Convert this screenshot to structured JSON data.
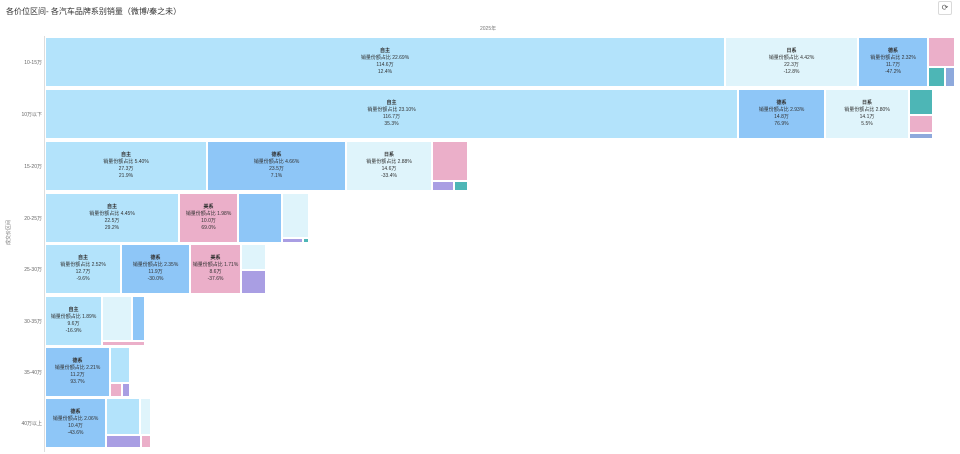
{
  "title": "各价位区间- 各汽车品牌系别销量（微博/秦之未）",
  "refresh_icon": "refresh-icon",
  "chart_data": {
    "type": "treemap",
    "column_label": "2025年",
    "y_axis_title": "成交价区间",
    "colors": {
      "自主": "#b3e3fb",
      "日系": "#dff4fb",
      "德系": "#8ec6f7",
      "美系": "#ebafc9",
      "other_teal": "#4db6b6",
      "other_purple": "#a99ee3",
      "other_blue": "#8ea9dc"
    },
    "rows": [
      {
        "label": "10-15万",
        "cells": [
          {
            "name": "自主",
            "share": "销量份额占比 22.69%",
            "sales": "114.6万",
            "growth": "12.4%",
            "color": "自主"
          },
          {
            "name": "日系",
            "share": "销量份额占比 4.42%",
            "sales": "22.3万",
            "growth": "-12.8%",
            "color": "日系"
          },
          {
            "name": "德系",
            "share": "销量份额占比 2.32%",
            "sales": "11.7万",
            "growth": "-47.2%",
            "color": "德系"
          },
          {
            "color": "美系"
          },
          {
            "color": "other_teal"
          },
          {
            "color": "other_blue"
          }
        ]
      },
      {
        "label": "10万以下",
        "cells": [
          {
            "name": "自主",
            "share": "销量份额占比 23.10%",
            "sales": "116.7万",
            "growth": "35.3%",
            "color": "自主"
          },
          {
            "name": "德系",
            "share": "销量份额占比 2.93%",
            "sales": "14.8万",
            "growth": "76.9%",
            "color": "德系"
          },
          {
            "name": "日系",
            "share": "销量份额占比 2.80%",
            "sales": "14.1万",
            "growth": "5.5%",
            "color": "日系"
          },
          {
            "color": "other_teal"
          },
          {
            "color": "美系"
          },
          {
            "color": "other_blue"
          }
        ]
      },
      {
        "label": "15-20万",
        "cells": [
          {
            "name": "自主",
            "share": "销量份额占比 5.40%",
            "sales": "27.3万",
            "growth": "21.9%",
            "color": "自主"
          },
          {
            "name": "德系",
            "share": "销量份额占比 4.66%",
            "sales": "23.5万",
            "growth": "7.1%",
            "color": "德系"
          },
          {
            "name": "日系",
            "share": "销量份额占比 2.88%",
            "sales": "14.6万",
            "growth": "-33.4%",
            "color": "日系"
          },
          {
            "color": "美系"
          },
          {
            "color": "other_purple"
          },
          {
            "color": "other_teal"
          }
        ]
      },
      {
        "label": "20-25万",
        "cells": [
          {
            "name": "自主",
            "share": "销量份额占比 4.45%",
            "sales": "22.5万",
            "growth": "29.2%",
            "color": "自主"
          },
          {
            "name": "美系",
            "share": "销量份额占比 1.98%",
            "sales": "10.0万",
            "growth": "69.0%",
            "color": "美系"
          },
          {
            "color": "德系"
          },
          {
            "color": "日系"
          },
          {
            "color": "other_purple"
          },
          {
            "color": "other_teal"
          }
        ]
      },
      {
        "label": "25-30万",
        "cells": [
          {
            "name": "自主",
            "share": "销量份额占比 2.52%",
            "sales": "12.7万",
            "growth": "-9.6%",
            "color": "自主"
          },
          {
            "name": "德系",
            "share": "销量份额占比 2.35%",
            "sales": "11.9万",
            "growth": "-30.0%",
            "color": "德系"
          },
          {
            "name": "美系",
            "share": "销量份额占比 1.71%",
            "sales": "8.6万",
            "growth": "-37.6%",
            "color": "美系"
          },
          {
            "color": "日系"
          },
          {
            "color": "other_purple"
          }
        ]
      },
      {
        "label": "30-35万",
        "cells": [
          {
            "name": "自主",
            "share": "销量份额占比 1.89%",
            "sales": "9.6万",
            "growth": "-16.9%",
            "color": "自主"
          },
          {
            "color": "日系"
          },
          {
            "color": "德系"
          },
          {
            "color": "美系"
          }
        ]
      },
      {
        "label": "35-40万",
        "cells": [
          {
            "name": "德系",
            "share": "销量份额占比 2.21%",
            "sales": "11.2万",
            "growth": "93.7%",
            "color": "德系"
          },
          {
            "color": "自主"
          },
          {
            "color": "美系"
          },
          {
            "color": "other_purple"
          }
        ]
      },
      {
        "label": "40万以上",
        "cells": [
          {
            "name": "德系",
            "share": "销量份额占比 2.06%",
            "sales": "10.4万",
            "growth": "-43.6%",
            "color": "德系"
          },
          {
            "color": "自主"
          },
          {
            "color": "日系"
          },
          {
            "color": "other_purple"
          },
          {
            "color": "美系"
          }
        ]
      }
    ]
  }
}
